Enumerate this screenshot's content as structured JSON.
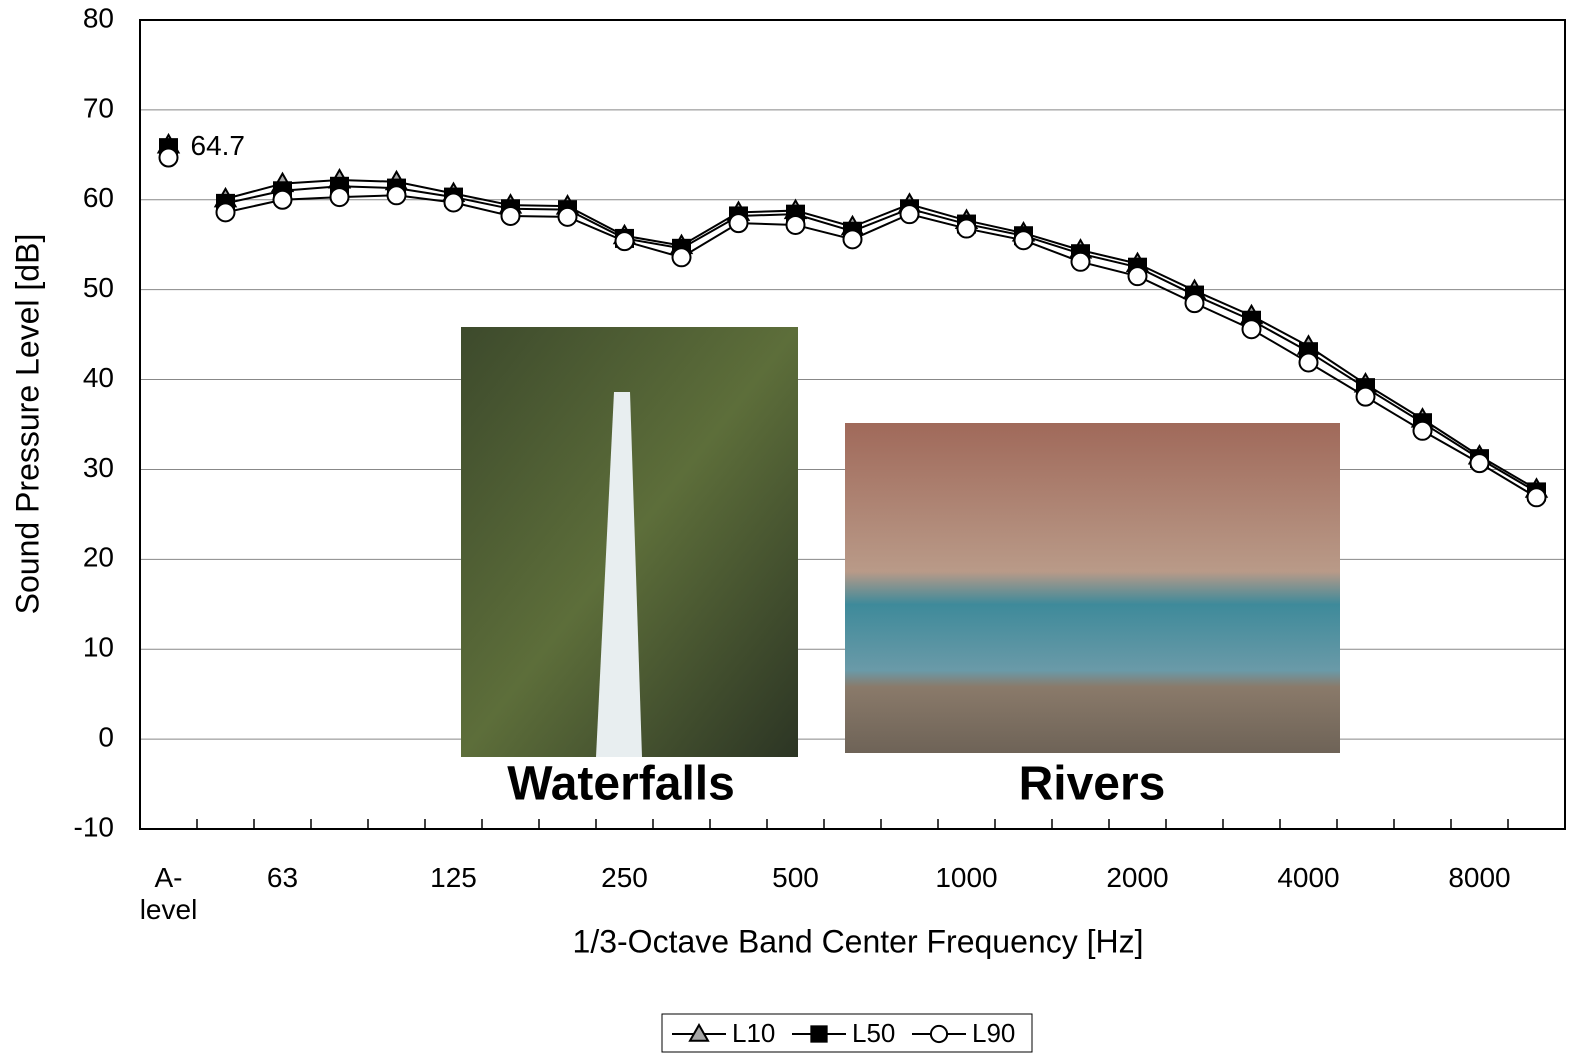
{
  "chart_data": {
    "type": "line",
    "ylabel": "Sound Pressure Level [dB]",
    "xlabel": "1/3-Octave Band Center Frequency [Hz]",
    "categories": [
      "A-level",
      null,
      "63",
      null,
      null,
      "125",
      null,
      null,
      "250",
      null,
      null,
      "500",
      null,
      null,
      "1000",
      null,
      null,
      "2000",
      null,
      null,
      "4000",
      null,
      null,
      "8000",
      null
    ],
    "series": [
      {
        "name": "L10",
        "color": "#a6a6a6",
        "marker": "triangle",
        "values": [
          66.1,
          60.1,
          61.8,
          62.2,
          62.0,
          60.7,
          59.4,
          59.3,
          56.0,
          54.9,
          58.6,
          58.8,
          57.0,
          59.5,
          57.7,
          56.3,
          54.4,
          52.9,
          49.9,
          47.1,
          43.7,
          39.5,
          35.6,
          31.5,
          27.8
        ]
      },
      {
        "name": "L50",
        "color": "#000000",
        "marker": "square",
        "values": [
          65.8,
          59.6,
          61.0,
          61.5,
          61.3,
          60.3,
          59.0,
          58.9,
          55.7,
          54.6,
          58.2,
          58.4,
          56.5,
          59.0,
          57.3,
          56.0,
          54.0,
          52.5,
          49.4,
          46.6,
          43.1,
          39.1,
          35.2,
          31.2,
          27.5
        ]
      },
      {
        "name": "L90",
        "color": "#ffffff",
        "marker": "circle",
        "values": [
          64.7,
          58.6,
          60.0,
          60.3,
          60.5,
          59.7,
          58.2,
          58.1,
          55.4,
          53.6,
          57.4,
          57.2,
          55.6,
          58.4,
          56.8,
          55.5,
          53.1,
          51.5,
          48.5,
          45.6,
          41.9,
          38.1,
          34.3,
          30.7,
          26.9
        ],
        "value_labels": [
          "64.7",
          null,
          null,
          null,
          null,
          null,
          null,
          null,
          null,
          null,
          null,
          null,
          null,
          null,
          null,
          null,
          null,
          null,
          null,
          null,
          null,
          null,
          null,
          null,
          null
        ]
      }
    ],
    "ylim": [
      -10,
      80
    ],
    "yticks": [
      -10,
      0,
      10,
      20,
      30,
      40,
      50,
      60,
      70,
      80
    ],
    "grid": true,
    "legend": "bottom",
    "annotations": [
      "Waterfalls",
      "Rivers"
    ]
  }
}
